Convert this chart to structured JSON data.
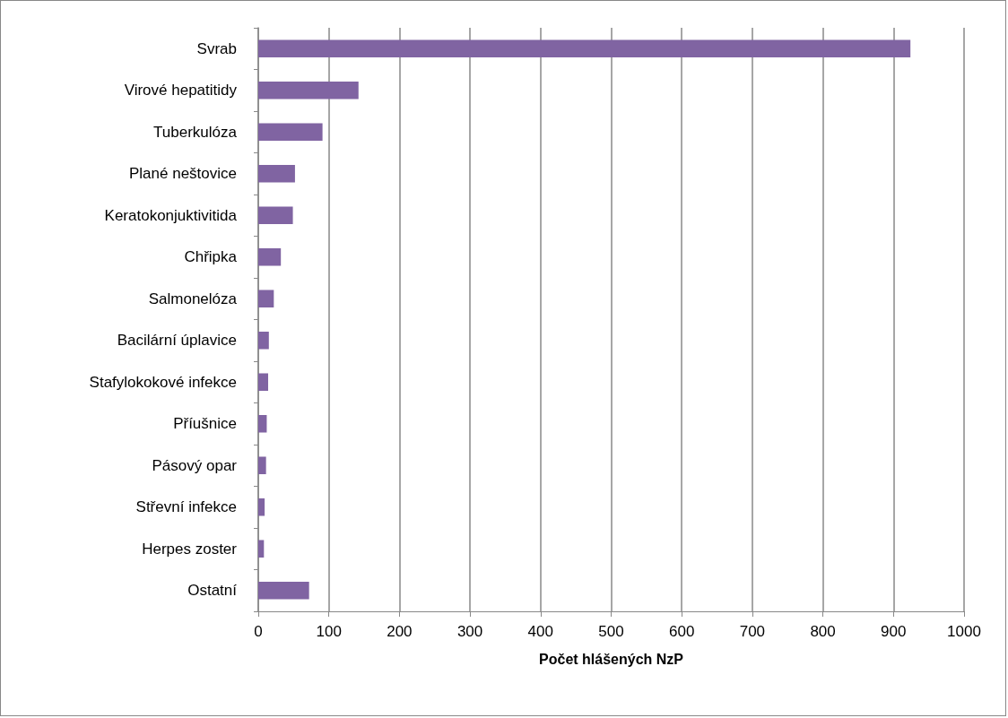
{
  "chart_data": {
    "type": "bar",
    "orientation": "horizontal",
    "xlabel": "Počet hlášených NzP",
    "categories": [
      "Svrab",
      "Virové hepatitidy",
      "Tuberkulóza",
      "Plané neštovice",
      "Keratokonjuktivitida",
      "Chřipka",
      "Salmonelóza",
      "Bacilární úplavice",
      "Stafylokokové infekce",
      "Příušnice",
      "Pásový opar",
      "Střevní infekce",
      "Herpes zoster",
      "Ostatní"
    ],
    "values": [
      924,
      142,
      91,
      52,
      49,
      32,
      22,
      15,
      14,
      12,
      11,
      9,
      8,
      72
    ],
    "color": "#8064a2",
    "xlim": [
      0,
      1000
    ],
    "xticks": [
      0,
      100,
      200,
      300,
      400,
      500,
      600,
      700,
      800,
      900,
      1000
    ],
    "grid": "x"
  }
}
